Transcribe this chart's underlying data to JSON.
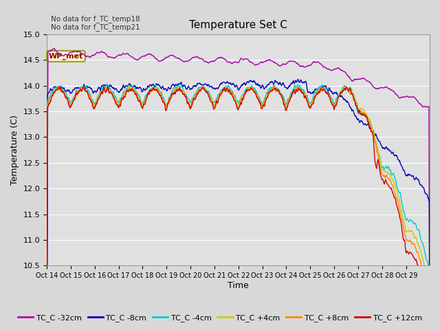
{
  "title": "Temperature Set C",
  "xlabel": "Time",
  "ylabel": "Temperature (C)",
  "ylim": [
    10.5,
    15.0
  ],
  "no_data_text": [
    "No data for f_TC_temp18",
    "No data for f_TC_temp21"
  ],
  "wp_met_label": "WP_met",
  "series_colors": {
    "TC_C -32cm": "#aa00aa",
    "TC_C -8cm": "#0000bb",
    "TC_C -4cm": "#00cccc",
    "TC_C +4cm": "#cccc00",
    "TC_C +8cm": "#ff8800",
    "TC_C +12cm": "#cc0000"
  },
  "bg_color": "#d8d8d8",
  "plot_bg_color": "#e0e0e0",
  "grid_color": "#ffffff",
  "legend_box_facecolor": "#ffffcc",
  "legend_box_edgecolor": "#999933",
  "x_tick_labels": [
    "Oct 14",
    "Oct 15",
    "Oct 16",
    "Oct 17",
    "Oct 18",
    "Oct 19",
    "Oct 20",
    "Oct 21",
    "Oct 22",
    "Oct 23",
    "Oct 24",
    "Oct 25",
    "Oct 26",
    "Oct 27",
    "Oct 28",
    "Oct 29"
  ],
  "n_points": 960,
  "n_days": 16
}
